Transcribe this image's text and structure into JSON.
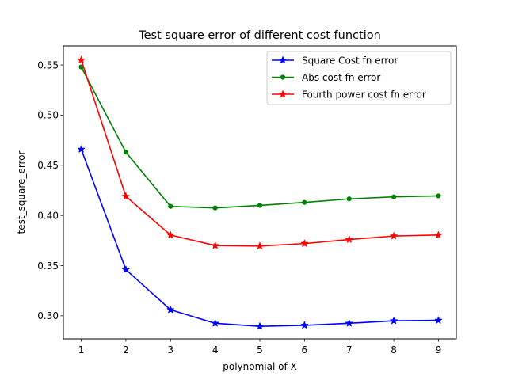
{
  "chart_data": {
    "type": "line",
    "title": "Test square error of different cost function",
    "xlabel": "polynomial of X",
    "ylabel": "test_square_error",
    "x": [
      1,
      2,
      3,
      4,
      5,
      6,
      7,
      8,
      9
    ],
    "xlim": [
      0.6,
      9.4
    ],
    "ylim": [
      0.277,
      0.569
    ],
    "xticks": [
      1,
      2,
      3,
      4,
      5,
      6,
      7,
      8,
      9
    ],
    "yticks": [
      0.3,
      0.35,
      0.4,
      0.45,
      0.5,
      0.55
    ],
    "ytick_labels": [
      "0.30",
      "0.35",
      "0.40",
      "0.45",
      "0.50",
      "0.55"
    ],
    "grid": false,
    "legend_position": "top-right",
    "series": [
      {
        "name": "Square Cost fn error",
        "color": "#0000ff",
        "marker": "star",
        "values": [
          0.466,
          0.346,
          0.306,
          0.2925,
          0.2895,
          0.2905,
          0.2925,
          0.295,
          0.2955
        ]
      },
      {
        "name": "Abs cost fn error",
        "color": "#008000",
        "marker": "dot",
        "values": [
          0.548,
          0.463,
          0.409,
          0.4075,
          0.41,
          0.413,
          0.4165,
          0.4185,
          0.4195
        ]
      },
      {
        "name": "Fourth power cost fn error",
        "color": "#ff0000",
        "marker": "star",
        "values": [
          0.555,
          0.419,
          0.3805,
          0.37,
          0.3695,
          0.372,
          0.376,
          0.3795,
          0.3805
        ]
      }
    ]
  }
}
